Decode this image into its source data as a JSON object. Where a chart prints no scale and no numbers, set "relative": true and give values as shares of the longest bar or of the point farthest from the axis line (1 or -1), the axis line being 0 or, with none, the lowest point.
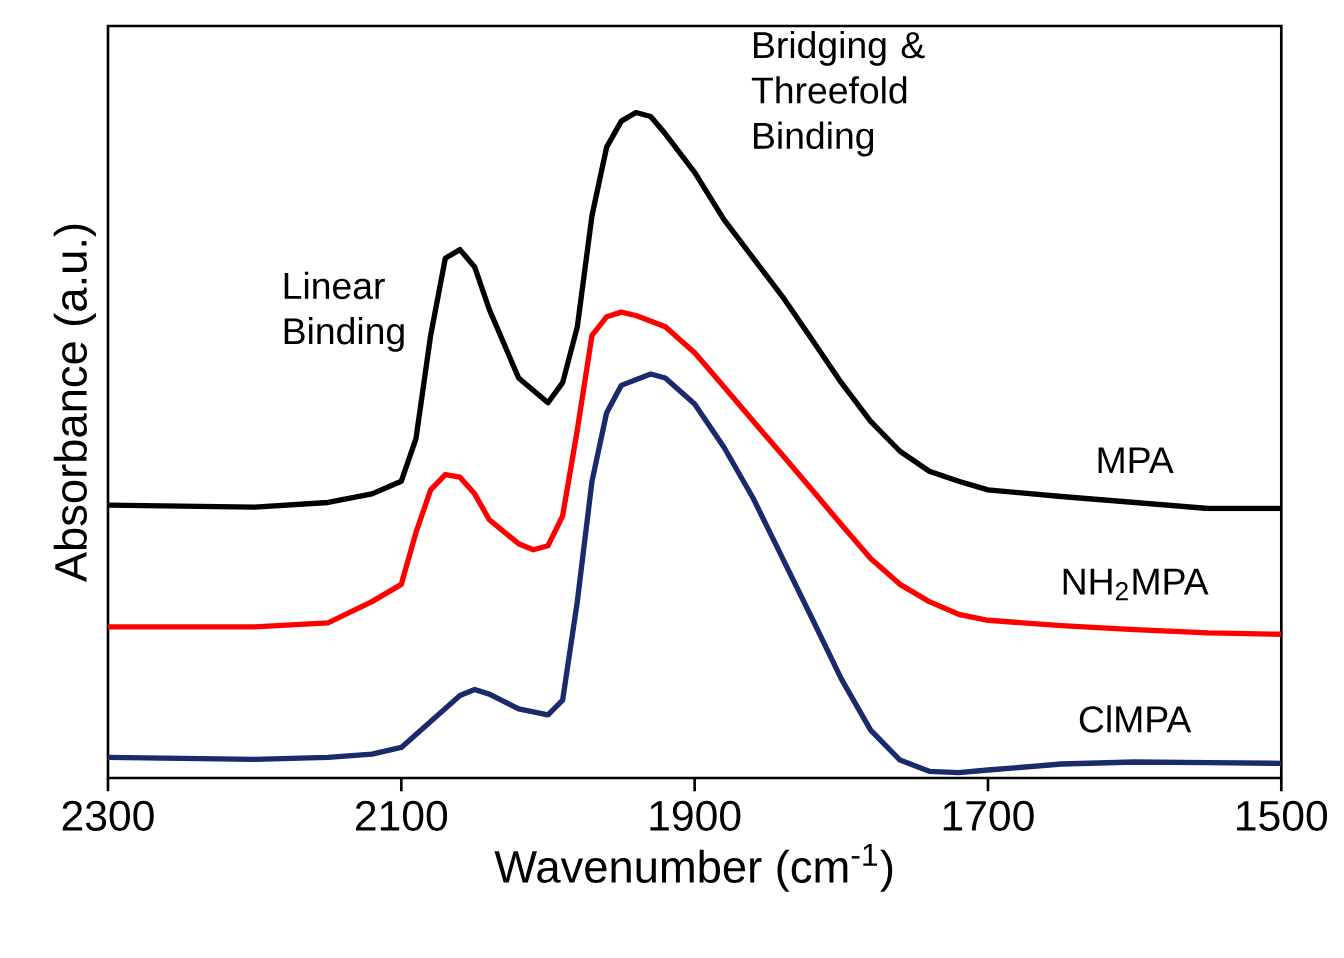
{
  "chart_data": {
    "type": "line",
    "relative": true,
    "xlabel": "Wavenumber (cm$^{-1}$)",
    "ylabel": "Absorbance (a.u.)",
    "xlim": [
      2300,
      1500
    ],
    "xticks": [
      2300,
      2100,
      1900,
      1700,
      1500
    ],
    "grid": false,
    "marker": "none",
    "line_style": "solid",
    "annotations": [
      "Linear Binding",
      "Bridging & Threefold Binding"
    ],
    "x": [
      2300,
      2200,
      2150,
      2120,
      2100,
      2090,
      2080,
      2070,
      2060,
      2050,
      2040,
      2020,
      2000,
      1990,
      1980,
      1970,
      1960,
      1950,
      1940,
      1930,
      1920,
      1900,
      1880,
      1860,
      1840,
      1820,
      1800,
      1780,
      1760,
      1740,
      1720,
      1700,
      1650,
      1600,
      1550,
      1500
    ],
    "series": [
      {
        "name": "MPA",
        "color": "#000000",
        "values": [
          0.41,
          0.407,
          0.414,
          0.427,
          0.446,
          0.51,
          0.665,
          0.781,
          0.794,
          0.768,
          0.704,
          0.601,
          0.564,
          0.594,
          0.678,
          0.845,
          0.948,
          0.987,
          1.0,
          0.994,
          0.968,
          0.91,
          0.839,
          0.781,
          0.723,
          0.659,
          0.594,
          0.536,
          0.491,
          0.461,
          0.446,
          0.433,
          0.423,
          0.414,
          0.405,
          0.405
        ]
      },
      {
        "name": "NH$_{2}$MPA",
        "color": "#ff0000",
        "x": [
          2300,
          2200,
          2150,
          2120,
          2100,
          2090,
          2080,
          2070,
          2060,
          2050,
          2040,
          2020,
          2010,
          2000,
          1990,
          1980,
          1970,
          1960,
          1950,
          1940,
          1920,
          1900,
          1880,
          1860,
          1840,
          1820,
          1800,
          1780,
          1760,
          1740,
          1720,
          1700,
          1650,
          1600,
          1550,
          1500
        ],
        "values": [
          0.227,
          0.227,
          0.233,
          0.265,
          0.291,
          0.369,
          0.433,
          0.456,
          0.452,
          0.427,
          0.388,
          0.352,
          0.343,
          0.349,
          0.394,
          0.523,
          0.665,
          0.693,
          0.7,
          0.695,
          0.678,
          0.639,
          0.588,
          0.536,
          0.485,
          0.433,
          0.381,
          0.33,
          0.291,
          0.265,
          0.246,
          0.237,
          0.229,
          0.223,
          0.218,
          0.216
        ]
      },
      {
        "name": "ClMPA",
        "color": "#1b2a6b",
        "x": [
          2300,
          2200,
          2150,
          2120,
          2100,
          2080,
          2060,
          2050,
          2040,
          2020,
          2000,
          1990,
          1980,
          1970,
          1960,
          1950,
          1930,
          1920,
          1900,
          1880,
          1860,
          1840,
          1820,
          1800,
          1780,
          1760,
          1740,
          1720,
          1700,
          1650,
          1600,
          1550,
          1500
        ],
        "values": [
          0.031,
          0.028,
          0.031,
          0.036,
          0.046,
          0.085,
          0.124,
          0.133,
          0.126,
          0.104,
          0.095,
          0.117,
          0.265,
          0.446,
          0.549,
          0.59,
          0.607,
          0.601,
          0.562,
          0.497,
          0.42,
          0.33,
          0.24,
          0.149,
          0.072,
          0.027,
          0.01,
          0.008,
          0.012,
          0.021,
          0.024,
          0.023,
          0.022
        ]
      }
    ]
  }
}
